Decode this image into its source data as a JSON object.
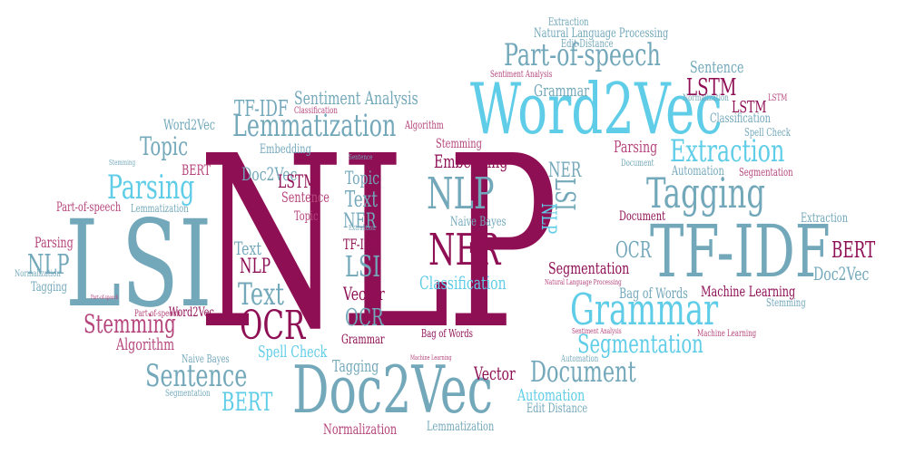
{
  "palette": {
    "maroon": "#8f0f55",
    "rose": "#b5457c",
    "light_blue": "#5fcde8",
    "steel_blue": "#73a8ba",
    "pale_steel": "#8fb8c7",
    "pink": "#c46a93"
  },
  "words": {
    "nlp_main": "NLP",
    "lsi_big": "LSI",
    "word2vec_big": "Word2Vec",
    "tfidf_big": "TF-IDF",
    "doc2vec_big": "Doc2Vec",
    "grammar_big": "Grammar",
    "lemmatization": "Lemmatization",
    "tagging_big": "Tagging",
    "part_of_speech": "Part-of-speech",
    "nlp_mid": "NLP",
    "ner_mid": "NER",
    "ocr_mid": "OCR",
    "text_mid": "Text",
    "document_mid": "Document",
    "sentence_mid": "Sentence",
    "stemming_mid": "Stemming",
    "parsing_mid": "Parsing",
    "topic_mid": "Topic",
    "extraction_mid": "Extraction",
    "segmentation_mid": "Segmentation",
    "bert_mid": "BERT",
    "lstm_mid": "LSTM",
    "nlp_left": "NLP",
    "nlp_small": "NLP",
    "text_small": "Text",
    "lsi_small": "LSI",
    "ner_small": "NER",
    "lsi_vert": "LSI",
    "nlp_vert": "NLP",
    "ner_vert": "NER",
    "ocr_small": "OCR",
    "ocr_right": "OCR",
    "bert_right": "BERT",
    "doc2vec_small": "Doc2Vec",
    "doc2vec_right": "Doc2Vec",
    "tfidf_small": "TF-IDF",
    "tfidf_top": "TF-IDF",
    "vector_1": "Vector",
    "vector_2": "Vector",
    "embedding_1": "Embedding",
    "embedding_2": "Embedding",
    "classification_1": "Classification",
    "classification_2": "Classification",
    "classification_3": "Classification",
    "grammar_1": "Grammar",
    "grammar_2": "Grammar",
    "sentence_1": "Sentence",
    "sentence_2": "Sentence",
    "topic_small": "Topic",
    "topic_tiny": "Topic",
    "lstm_small": "LSTM",
    "lstm_right": "LSTM",
    "lstm_tiny": "LSTM",
    "bert_small": "BERT",
    "parsing_small": "Parsing",
    "parsing_left": "Parsing",
    "stemming_small": "Stemming",
    "stemming_right": "Stemming",
    "stemming_tiny": "Stemming",
    "sentiment_analysis_1": "Sentiment Analysis",
    "sentiment_analysis_2": "Sentiment Analysis",
    "sentiment_analysis_3": "Sentiment Analysis",
    "algorithm_1": "Algorithm",
    "algorithm_2": "Algorithm",
    "word2vec_1": "Word2Vec",
    "word2vec_2": "Word2Vec",
    "extraction_1": "Extraction",
    "extraction_2": "Extraction",
    "natural_language_processing_1": "Natural Language Processing",
    "natural_language_processing_2": "Natural Language Processing",
    "edit_distance_1": "Edit Distance",
    "edit_distance_2": "Edit Distance",
    "normalization_1": "Normalization",
    "normalization_2": "Normalization",
    "normalization_3": "Normalization",
    "lemmatization_1": "Lemmatization",
    "lemmatization_2": "Lemmatization",
    "part_of_speech_1": "Part-of-speech",
    "part_of_speech_2": "Part-of-speech",
    "part_of_speech_3": "Part-of-speech",
    "naive_bayes_1": "Naive Bayes",
    "naive_bayes_2": "Naive Bayes",
    "bag_of_words_1": "Bag of Words",
    "bag_of_words_2": "Bag of Words",
    "spell_check_1": "Spell Check",
    "spell_check_2": "Spell Check",
    "segmentation_1": "Segmentation",
    "segmentation_2": "Segmentation",
    "segmentation_3": "Segmentation",
    "automation_1": "Automation",
    "automation_2": "Automation",
    "automation_3": "Automation",
    "document_1": "Document",
    "document_2": "Document",
    "machine_learning_1": "Machine Learning",
    "machine_learning_2": "Machine Learning",
    "machine_learning_3": "Machine Learning",
    "tagging_1": "Tagging",
    "tagging_2": "Tagging",
    "sentence_3": "Sentence",
    "extraction_3": "Extraction"
  }
}
